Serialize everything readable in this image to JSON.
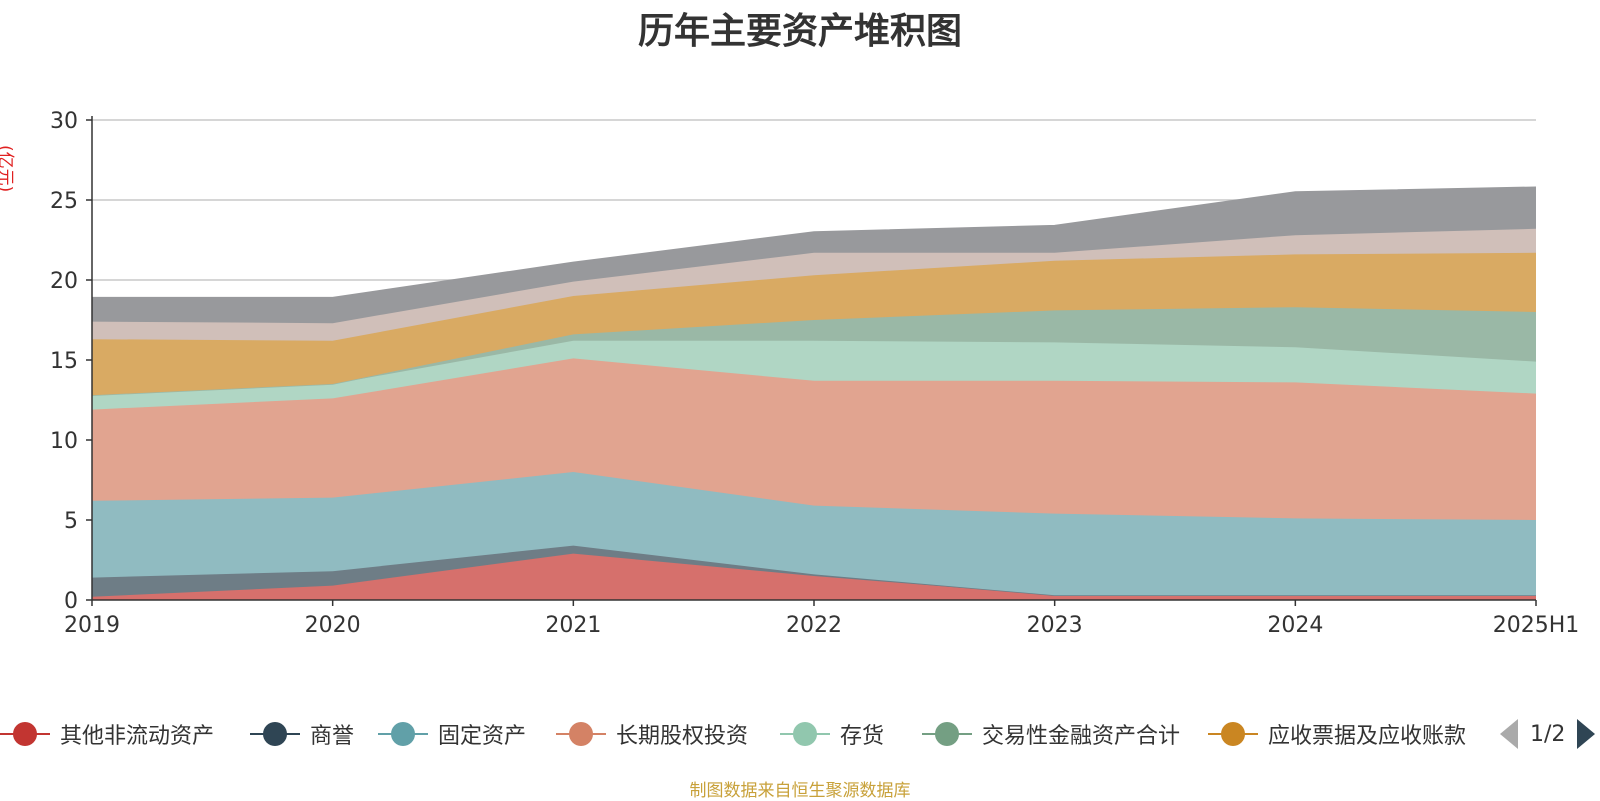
{
  "chart_data": {
    "type": "area",
    "stacked": true,
    "title": "历年主要资产堆积图",
    "ylabel": "(亿元)",
    "ylim": [
      0,
      30
    ],
    "yticks": [
      0,
      5,
      10,
      15,
      20,
      25,
      30
    ],
    "categories": [
      "2019",
      "2020",
      "2021",
      "2022",
      "2023",
      "2024",
      "2025H1"
    ],
    "grid": true,
    "legend_position": "bottom",
    "series": [
      {
        "name": "其他非流动资产",
        "values": [
          0.2,
          0.9,
          2.9,
          1.5,
          0.3,
          0.3,
          0.3
        ],
        "color": "#c23531",
        "fill": "#d6706c"
      },
      {
        "name": "商誉",
        "values": [
          1.2,
          0.9,
          0.5,
          0.1,
          0.0,
          0.0,
          0.0
        ],
        "color": "#2f4554",
        "fill": "#6e7d86"
      },
      {
        "name": "固定资产",
        "values": [
          4.8,
          4.6,
          4.6,
          4.3,
          5.1,
          4.8,
          4.7
        ],
        "color": "#61a0a8",
        "fill": "#90bbc1"
      },
      {
        "name": "长期股权投资",
        "values": [
          5.7,
          6.2,
          7.1,
          7.8,
          8.3,
          8.5,
          7.9
        ],
        "color": "#d48265",
        "fill": "#e1a490"
      },
      {
        "name": "存货",
        "values": [
          0.9,
          0.9,
          1.1,
          2.5,
          2.4,
          2.2,
          2.0
        ],
        "color": "#91c7ae",
        "fill": "#b0d6c4"
      },
      {
        "name": "交易性金融资产合计",
        "values": [
          0.0,
          0.0,
          0.4,
          1.3,
          2.0,
          2.5,
          3.1
        ],
        "color": "#749f83",
        "fill": "#9ab8a6"
      },
      {
        "name": "应收票据及应收账款",
        "values": [
          3.5,
          2.7,
          2.4,
          2.8,
          3.1,
          3.3,
          3.7
        ],
        "color": "#ca8622",
        "fill": "#d9aa63"
      },
      {
        "name": "",
        "values": [
          1.1,
          1.1,
          0.9,
          1.4,
          0.5,
          1.2,
          1.5
        ],
        "color": "#bda29a",
        "fill": "#d0bfb9"
      },
      {
        "name": "",
        "values": [
          1.5,
          1.6,
          1.2,
          1.3,
          1.7,
          2.7,
          2.6
        ],
        "color": "#6e7074",
        "fill": "#98999c"
      }
    ]
  },
  "legend": {
    "items": [
      {
        "label": "其他非流动资产",
        "color": "#c23531"
      },
      {
        "label": "商誉",
        "color": "#2f4554"
      },
      {
        "label": "固定资产",
        "color": "#61a0a8"
      },
      {
        "label": "长期股权投资",
        "color": "#d48265"
      },
      {
        "label": "存货",
        "color": "#91c7ae"
      },
      {
        "label": "交易性金融资产合计",
        "color": "#749f83"
      },
      {
        "label": "应收票据及应收账款",
        "color": "#ca8622"
      }
    ],
    "page_text": "1/2",
    "prev_icon": "triangle-left-icon",
    "next_icon": "triangle-right-icon"
  },
  "source_note": "制图数据来自恒生聚源数据库"
}
